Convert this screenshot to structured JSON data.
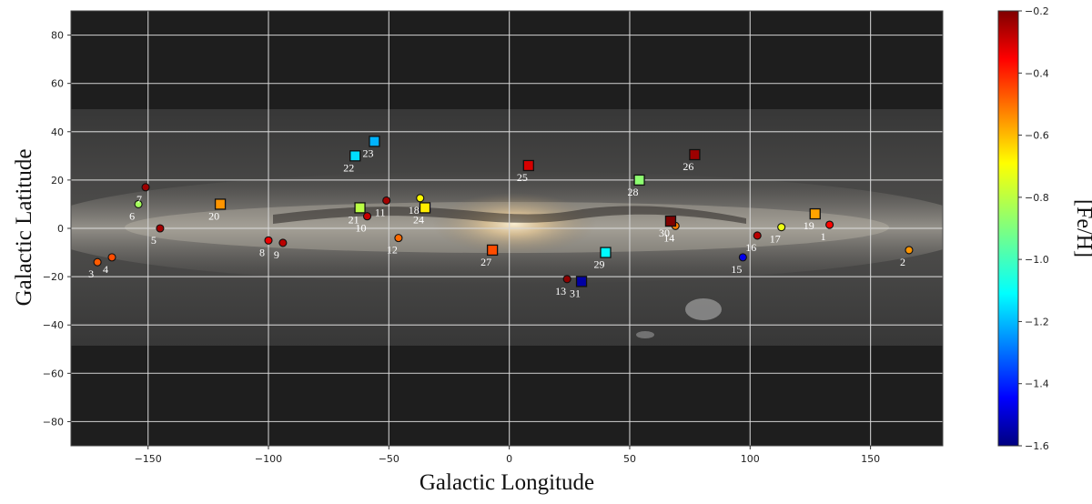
{
  "chart_data": {
    "type": "scatter",
    "xlabel": "Galactic Longitude",
    "ylabel": "Galactic Latitude",
    "xlim": [
      -182,
      180
    ],
    "ylim": [
      -90,
      90
    ],
    "xticks": [
      -150,
      -100,
      -50,
      0,
      50,
      100,
      150
    ],
    "yticks": [
      -80,
      -60,
      -40,
      -20,
      0,
      20,
      40,
      60,
      80
    ],
    "grid": true,
    "background": "Milky Way all-sky image",
    "colorbar": {
      "label": "[Fe/H]",
      "min": -1.6,
      "max": -0.2,
      "ticks": [
        -0.2,
        -0.4,
        -0.6,
        -0.8,
        -1.0,
        -1.2,
        -1.4,
        -1.6
      ],
      "tick_labels": [
        "-0.2",
        "-0.4",
        "-0.6",
        "-0.8",
        "-1.0",
        "-1.2",
        "-1.4",
        "-1.6"
      ],
      "colormap": "jet"
    },
    "series": [
      {
        "marker": "circle",
        "points": [
          {
            "label": "1",
            "x": 133,
            "y": 1.5,
            "feh": -0.38
          },
          {
            "label": "2",
            "x": 166,
            "y": -9,
            "feh": -0.58
          },
          {
            "label": "3",
            "x": -171,
            "y": -14,
            "feh": -0.5
          },
          {
            "label": "4",
            "x": -165,
            "y": -12,
            "feh": -0.48
          },
          {
            "label": "5",
            "x": -145,
            "y": 0,
            "feh": -0.25
          },
          {
            "label": "6",
            "x": -154,
            "y": 10,
            "feh": -0.85
          },
          {
            "label": "7",
            "x": -151,
            "y": 17,
            "feh": -0.24
          },
          {
            "label": "8",
            "x": -100,
            "y": -5,
            "feh": -0.35
          },
          {
            "label": "9",
            "x": -94,
            "y": -6,
            "feh": -0.28
          },
          {
            "label": "10",
            "x": -59,
            "y": 5,
            "feh": -0.3
          },
          {
            "label": "11",
            "x": -51,
            "y": 11.5,
            "feh": -0.25
          },
          {
            "label": "12",
            "x": -46,
            "y": -4,
            "feh": -0.52
          },
          {
            "label": "13",
            "x": 24,
            "y": -21,
            "feh": -0.22
          },
          {
            "label": "14",
            "x": 69,
            "y": 1,
            "feh": -0.55
          },
          {
            "label": "15",
            "x": 97,
            "y": -12,
            "feh": -1.45
          },
          {
            "label": "16",
            "x": 103,
            "y": -3,
            "feh": -0.28
          },
          {
            "label": "17",
            "x": 113,
            "y": 0.5,
            "feh": -0.75
          },
          {
            "label": "18",
            "x": -37,
            "y": 12.5,
            "feh": -0.72
          }
        ]
      },
      {
        "marker": "square",
        "points": [
          {
            "label": "19",
            "x": 127,
            "y": 6,
            "feh": -0.6
          },
          {
            "label": "20",
            "x": -120,
            "y": 10,
            "feh": -0.58
          },
          {
            "label": "21",
            "x": -62,
            "y": 8.5,
            "feh": -0.82
          },
          {
            "label": "22",
            "x": -64,
            "y": 30,
            "feh": -1.12
          },
          {
            "label": "23",
            "x": -56,
            "y": 36,
            "feh": -1.18
          },
          {
            "label": "24",
            "x": -35,
            "y": 8.5,
            "feh": -0.7
          },
          {
            "label": "25",
            "x": 8,
            "y": 26,
            "feh": -0.32
          },
          {
            "label": "26",
            "x": 77,
            "y": 30.5,
            "feh": -0.24
          },
          {
            "label": "27",
            "x": -7,
            "y": -9,
            "feh": -0.48
          },
          {
            "label": "28",
            "x": 54,
            "y": 20,
            "feh": -0.88
          },
          {
            "label": "29",
            "x": 40,
            "y": -10,
            "feh": -1.08
          },
          {
            "label": "30",
            "x": 67,
            "y": 3,
            "feh": -0.2
          },
          {
            "label": "31",
            "x": 30,
            "y": -22,
            "feh": -1.55
          }
        ]
      }
    ]
  }
}
